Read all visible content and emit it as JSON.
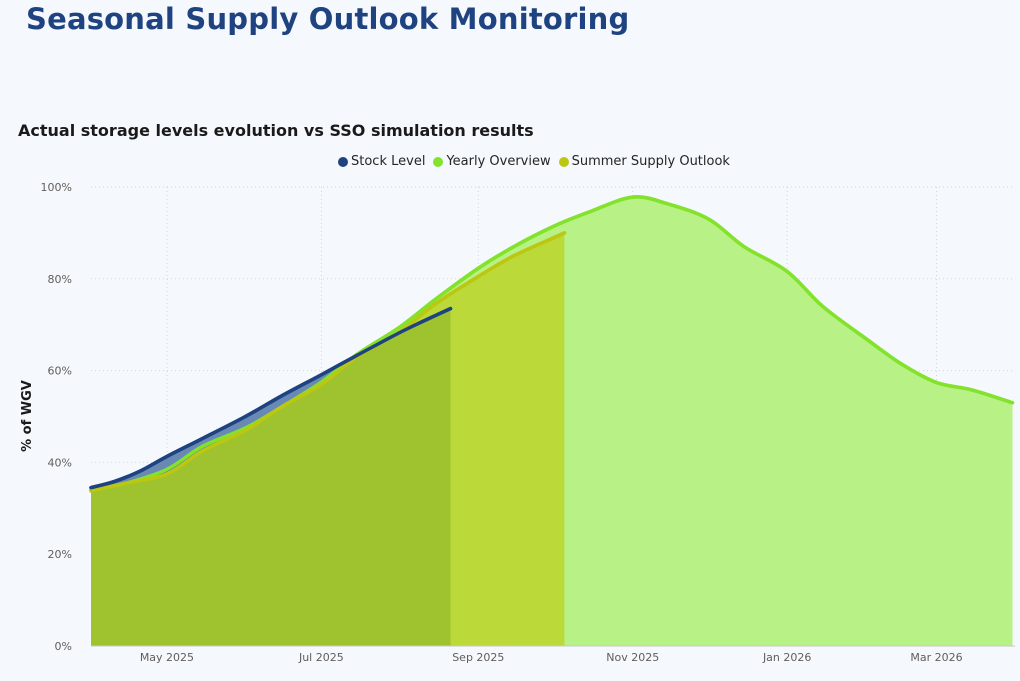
{
  "page": {
    "title": "Seasonal Supply Outlook Monitoring"
  },
  "chart_data": {
    "type": "area",
    "title": "Actual storage levels evolution vs SSO simulation results",
    "xlabel": "",
    "ylabel": "% of WGV",
    "y_ticks": [
      "0%",
      "20%",
      "40%",
      "60%",
      "80%",
      "100%"
    ],
    "ylim": [
      0,
      100
    ],
    "x_ticks": [
      "May 2025",
      "Jul 2025",
      "Sep 2025",
      "Nov 2025",
      "Jan 2026",
      "Mar 2026"
    ],
    "x_tick_dates": [
      "2025-05-01",
      "2025-07-01",
      "2025-09-01",
      "2025-11-01",
      "2026-01-01",
      "2026-03-01"
    ],
    "xlim": [
      "2025-04-01",
      "2026-03-31"
    ],
    "grid": true,
    "legend_position": "top-center",
    "series": [
      {
        "name": "Stock Level",
        "color": "#1f4380",
        "fill": "#5c7faf",
        "points": [
          [
            "2025-04-01",
            34.5
          ],
          [
            "2025-04-10",
            35.8
          ],
          [
            "2025-04-20",
            38.0
          ],
          [
            "2025-05-01",
            41.3
          ],
          [
            "2025-05-15",
            45.2
          ],
          [
            "2025-06-01",
            50.0
          ],
          [
            "2025-06-15",
            54.4
          ],
          [
            "2025-07-01",
            59.1
          ],
          [
            "2025-07-15",
            63.3
          ],
          [
            "2025-08-01",
            68.3
          ],
          [
            "2025-08-10",
            70.7
          ],
          [
            "2025-08-21",
            73.5
          ]
        ]
      },
      {
        "name": "Yearly Overview",
        "color": "#83e22b",
        "fill": "#b8f185",
        "points": [
          [
            "2025-04-01",
            34.0
          ],
          [
            "2025-04-15",
            35.5
          ],
          [
            "2025-05-01",
            38.5
          ],
          [
            "2025-05-15",
            43.5
          ],
          [
            "2025-06-01",
            47.5
          ],
          [
            "2025-06-15",
            52.0
          ],
          [
            "2025-07-01",
            57.5
          ],
          [
            "2025-07-15",
            63.5
          ],
          [
            "2025-08-01",
            69.5
          ],
          [
            "2025-08-15",
            75.5
          ],
          [
            "2025-09-01",
            82.3
          ],
          [
            "2025-09-15",
            87.0
          ],
          [
            "2025-10-01",
            91.5
          ],
          [
            "2025-10-15",
            94.6
          ],
          [
            "2025-11-01",
            97.8
          ],
          [
            "2025-11-15",
            96.3
          ],
          [
            "2025-12-01",
            93.0
          ],
          [
            "2025-12-15",
            87.0
          ],
          [
            "2026-01-01",
            81.6
          ],
          [
            "2026-01-15",
            74.0
          ],
          [
            "2026-02-01",
            67.0
          ],
          [
            "2026-02-15",
            61.5
          ],
          [
            "2026-03-01",
            57.4
          ],
          [
            "2026-03-15",
            55.8
          ],
          [
            "2026-03-31",
            53.0
          ]
        ]
      },
      {
        "name": "Summer Supply Outlook",
        "color": "#bcc712",
        "fill": "#bcd93a",
        "points": [
          [
            "2025-04-01",
            33.8
          ],
          [
            "2025-04-15",
            35.5
          ],
          [
            "2025-05-01",
            37.5
          ],
          [
            "2025-05-15",
            42.5
          ],
          [
            "2025-06-01",
            47.0
          ],
          [
            "2025-06-15",
            52.0
          ],
          [
            "2025-07-01",
            57.0
          ],
          [
            "2025-07-15",
            63.0
          ],
          [
            "2025-08-01",
            68.5
          ],
          [
            "2025-08-15",
            74.5
          ],
          [
            "2025-09-01",
            80.5
          ],
          [
            "2025-09-15",
            85.0
          ],
          [
            "2025-10-01",
            89.0
          ],
          [
            "2025-10-05",
            90.0
          ]
        ]
      }
    ]
  }
}
